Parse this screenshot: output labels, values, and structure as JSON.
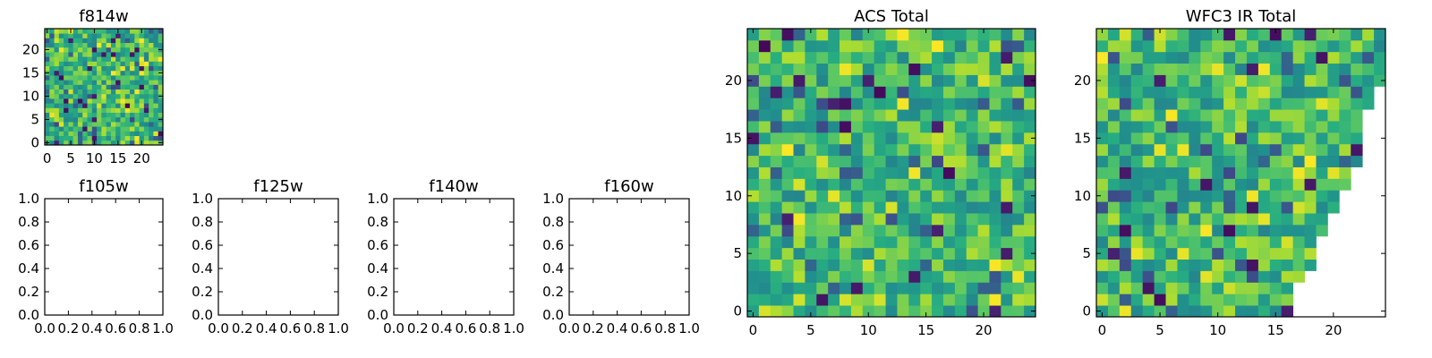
{
  "chart_data": [
    {
      "type": "heatmap",
      "title": "f814w",
      "xlabel": "",
      "ylabel": "",
      "xticks": [
        "0",
        "5",
        "10",
        "15",
        "20"
      ],
      "yticks": [
        "0",
        "5",
        "10",
        "15",
        "20"
      ],
      "xlim": [
        -0.5,
        24.5
      ],
      "ylim": [
        -0.5,
        24.5
      ],
      "grid": false,
      "colormap": "viridis",
      "grid_size": [
        25,
        25
      ],
      "seed": 814,
      "value_range": [
        0,
        1
      ],
      "note_values": "pixel values are noise-like; not individually labeled"
    },
    {
      "type": "heatmap",
      "title": "f105w",
      "xticks": [
        "0.0",
        "0.2",
        "0.4",
        "0.6",
        "0.8",
        "1.0"
      ],
      "yticks": [
        "0.0",
        "0.2",
        "0.4",
        "0.6",
        "0.8",
        "1.0"
      ],
      "xlim": [
        0,
        1
      ],
      "ylim": [
        0,
        1
      ],
      "empty": true
    },
    {
      "type": "heatmap",
      "title": "f125w",
      "xticks": [
        "0.0",
        "0.2",
        "0.4",
        "0.6",
        "0.8",
        "1.0"
      ],
      "yticks": [
        "0.0",
        "0.2",
        "0.4",
        "0.6",
        "0.8",
        "1.0"
      ],
      "xlim": [
        0,
        1
      ],
      "ylim": [
        0,
        1
      ],
      "empty": true
    },
    {
      "type": "heatmap",
      "title": "f140w",
      "xticks": [
        "0.0",
        "0.2",
        "0.4",
        "0.6",
        "0.8",
        "1.0"
      ],
      "yticks": [
        "0.0",
        "0.2",
        "0.4",
        "0.6",
        "0.8",
        "1.0"
      ],
      "xlim": [
        0,
        1
      ],
      "ylim": [
        0,
        1
      ],
      "empty": true
    },
    {
      "type": "heatmap",
      "title": "f160w",
      "xticks": [
        "0.0",
        "0.2",
        "0.4",
        "0.6",
        "0.8",
        "1.0"
      ],
      "yticks": [
        "0.0",
        "0.2",
        "0.4",
        "0.6",
        "0.8",
        "1.0"
      ],
      "xlim": [
        0,
        1
      ],
      "ylim": [
        0,
        1
      ],
      "empty": true
    },
    {
      "type": "heatmap",
      "title": "ACS Total",
      "xticks": [
        "0",
        "5",
        "10",
        "15",
        "20"
      ],
      "yticks": [
        "0",
        "5",
        "10",
        "15",
        "20"
      ],
      "xlim": [
        -0.5,
        24.5
      ],
      "ylim": [
        -0.5,
        24.5
      ],
      "grid": false,
      "colormap": "viridis",
      "grid_size": [
        25,
        25
      ],
      "seed": 1001,
      "value_range": [
        0,
        1
      ]
    },
    {
      "type": "heatmap",
      "title": "WFC3 IR Total",
      "xticks": [
        "0",
        "5",
        "10",
        "15",
        "20"
      ],
      "yticks": [
        "0",
        "5",
        "10",
        "15",
        "20"
      ],
      "xlim": [
        -0.5,
        24.5
      ],
      "ylim": [
        -0.5,
        24.5
      ],
      "grid": false,
      "colormap": "viridis",
      "grid_size": [
        25,
        25
      ],
      "seed": 3003,
      "value_range": [
        0,
        1
      ],
      "masked_region": "lower-right triangle is blank (white)",
      "row_max_column": [
        16,
        16,
        16,
        17,
        18,
        18,
        18,
        19,
        19,
        20,
        20,
        21,
        21,
        22,
        22,
        22,
        22,
        22,
        23,
        23,
        24,
        24,
        24,
        24,
        24
      ]
    }
  ]
}
